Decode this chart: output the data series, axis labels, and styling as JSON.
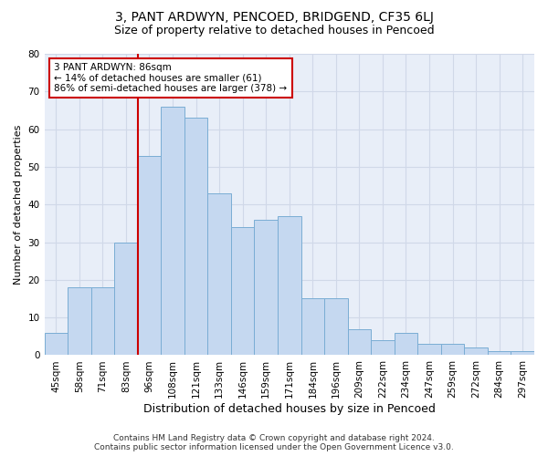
{
  "title": "3, PANT ARDWYN, PENCOED, BRIDGEND, CF35 6LJ",
  "subtitle": "Size of property relative to detached houses in Pencoed",
  "xlabel": "Distribution of detached houses by size in Pencoed",
  "ylabel": "Number of detached properties",
  "categories": [
    "45sqm",
    "58sqm",
    "71sqm",
    "83sqm",
    "96sqm",
    "108sqm",
    "121sqm",
    "133sqm",
    "146sqm",
    "159sqm",
    "171sqm",
    "184sqm",
    "196sqm",
    "209sqm",
    "222sqm",
    "234sqm",
    "247sqm",
    "259sqm",
    "272sqm",
    "284sqm",
    "297sqm"
  ],
  "values": [
    6,
    18,
    18,
    30,
    53,
    66,
    63,
    43,
    34,
    36,
    37,
    15,
    15,
    7,
    4,
    6,
    3,
    3,
    2,
    1,
    1
  ],
  "bar_color": "#c5d8f0",
  "bar_edge_color": "#7aadd4",
  "red_line_x": 3.5,
  "annotation_line1": "3 PANT ARDWYN: 86sqm",
  "annotation_line2": "← 14% of detached houses are smaller (61)",
  "annotation_line3": "86% of semi-detached houses are larger (378) →",
  "annotation_box_color": "#ffffff",
  "annotation_box_edge": "#cc0000",
  "red_line_color": "#cc0000",
  "ylim": [
    0,
    80
  ],
  "yticks": [
    0,
    10,
    20,
    30,
    40,
    50,
    60,
    70,
    80
  ],
  "grid_color": "#d0d8e8",
  "bg_color": "#e8eef8",
  "footer1": "Contains HM Land Registry data © Crown copyright and database right 2024.",
  "footer2": "Contains public sector information licensed under the Open Government Licence v3.0.",
  "title_fontsize": 10,
  "subtitle_fontsize": 9,
  "xlabel_fontsize": 9,
  "ylabel_fontsize": 8,
  "tick_fontsize": 7.5,
  "annot_fontsize": 7.5,
  "footer_fontsize": 6.5
}
